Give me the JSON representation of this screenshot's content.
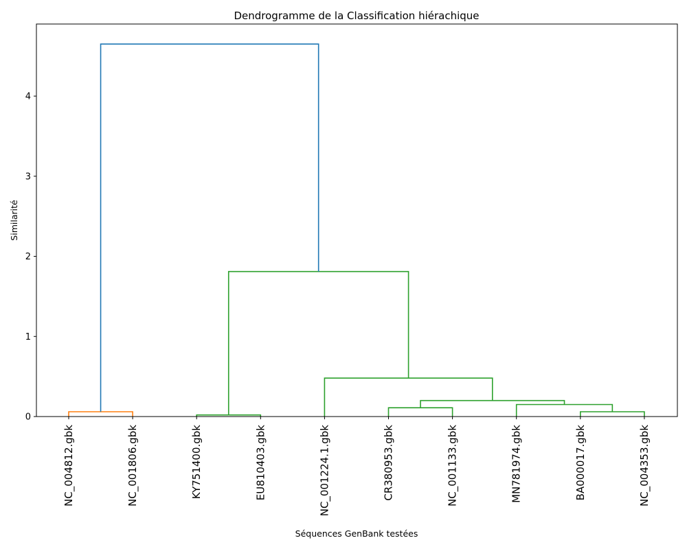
{
  "chart_data": {
    "type": "dendrogram",
    "title": "Dendrogramme de la Classification hiérachique",
    "xlabel": "Séquences GenBank testées",
    "ylabel": "Similarité",
    "ylim": [
      0,
      4.9
    ],
    "yticks": [
      0,
      1,
      2,
      3,
      4
    ],
    "grid": false,
    "leaves": [
      "NC_004812.gbk",
      "NC_001806.gbk",
      "KY751400.gbk",
      "EU810403.gbk",
      "NC_001224.1.gbk",
      "CR380953.gbk",
      "NC_001133.gbk",
      "MN781974.gbk",
      "BA000017.gbk",
      "NC_004353.gbk"
    ],
    "links": [
      {
        "left": "leaf:0",
        "right": "leaf:1",
        "height": 0.06,
        "color": "#ff7f0e"
      },
      {
        "left": "leaf:2",
        "right": "leaf:3",
        "height": 0.02,
        "color": "#2ca02c"
      },
      {
        "left": "leaf:5",
        "right": "leaf:6",
        "height": 0.11,
        "color": "#2ca02c"
      },
      {
        "left": "leaf:8",
        "right": "leaf:9",
        "height": 0.06,
        "color": "#2ca02c"
      },
      {
        "left": "leaf:7",
        "right": "link:3",
        "height": 0.15,
        "color": "#2ca02c"
      },
      {
        "left": "link:2",
        "right": "link:4",
        "height": 0.2,
        "color": "#2ca02c"
      },
      {
        "left": "leaf:4",
        "right": "link:5",
        "height": 0.48,
        "color": "#2ca02c"
      },
      {
        "left": "link:1",
        "right": "link:6",
        "height": 1.81,
        "color": "#2ca02c"
      },
      {
        "left": "link:0",
        "right": "link:7",
        "height": 4.65,
        "color": "#1f77b4"
      }
    ]
  }
}
